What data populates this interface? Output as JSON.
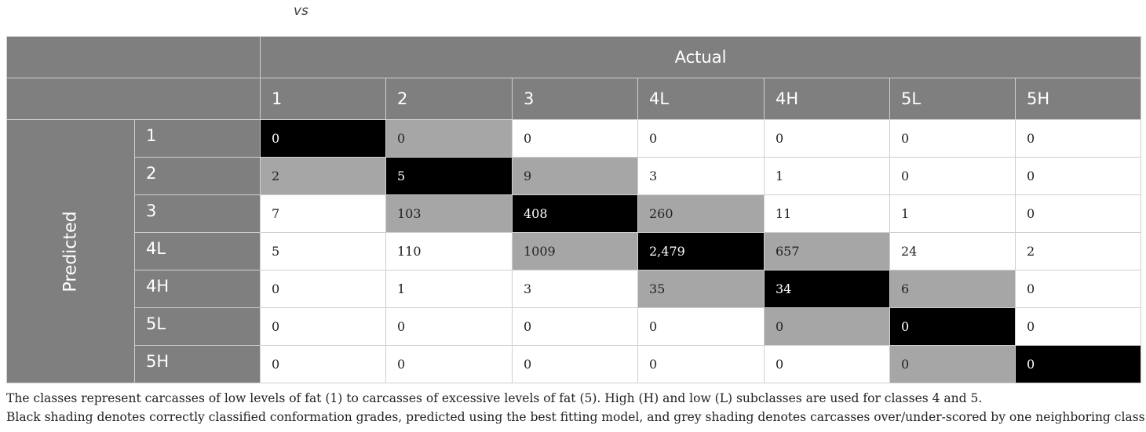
{
  "heading": "vs",
  "header": {
    "actual_label": "Actual",
    "predicted_label": "Predicted"
  },
  "columns": [
    "1",
    "2",
    "3",
    "4L",
    "4H",
    "5L",
    "5H"
  ],
  "rows": [
    {
      "label": "1",
      "values": [
        "0",
        "0",
        "0",
        "0",
        "0",
        "0",
        "0"
      ],
      "shading": [
        "black",
        "grey",
        "white",
        "white",
        "white",
        "white",
        "white"
      ]
    },
    {
      "label": "2",
      "values": [
        "2",
        "5",
        "9",
        "3",
        "1",
        "0",
        "0"
      ],
      "shading": [
        "grey",
        "black",
        "grey",
        "white",
        "white",
        "white",
        "white"
      ]
    },
    {
      "label": "3",
      "values": [
        "7",
        "103",
        "408",
        "260",
        "11",
        "1",
        "0"
      ],
      "shading": [
        "white",
        "grey",
        "black",
        "grey",
        "white",
        "white",
        "white"
      ]
    },
    {
      "label": "4L",
      "values": [
        "5",
        "110",
        "1009",
        "2,479",
        "657",
        "24",
        "2"
      ],
      "shading": [
        "white",
        "white",
        "grey",
        "black",
        "grey",
        "white",
        "white"
      ]
    },
    {
      "label": "4H",
      "values": [
        "0",
        "1",
        "3",
        "35",
        "34",
        "6",
        "0"
      ],
      "shading": [
        "white",
        "white",
        "white",
        "grey",
        "black",
        "grey",
        "white"
      ]
    },
    {
      "label": "5L",
      "values": [
        "0",
        "0",
        "0",
        "0",
        "0",
        "0",
        "0"
      ],
      "shading": [
        "white",
        "white",
        "white",
        "white",
        "grey",
        "black",
        "white"
      ]
    },
    {
      "label": "5H",
      "values": [
        "0",
        "0",
        "0",
        "0",
        "0",
        "0",
        "0"
      ],
      "shading": [
        "white",
        "white",
        "white",
        "white",
        "white",
        "grey",
        "black"
      ]
    }
  ],
  "footnotes": [
    "The classes represent carcasses of low levels of fat (1) to carcasses of excessive levels of fat (5). High (H) and low (L) subclasses are used for classes 4 and 5.",
    "Black shading denotes correctly classified conformation grades, predicted using the best fitting model, and grey shading denotes carcasses over/under-scored by one neighboring class."
  ],
  "colors": {
    "header_bg": "#7f7f7f",
    "grey_shade": "#a6a6a6",
    "black_shade": "#000000"
  }
}
